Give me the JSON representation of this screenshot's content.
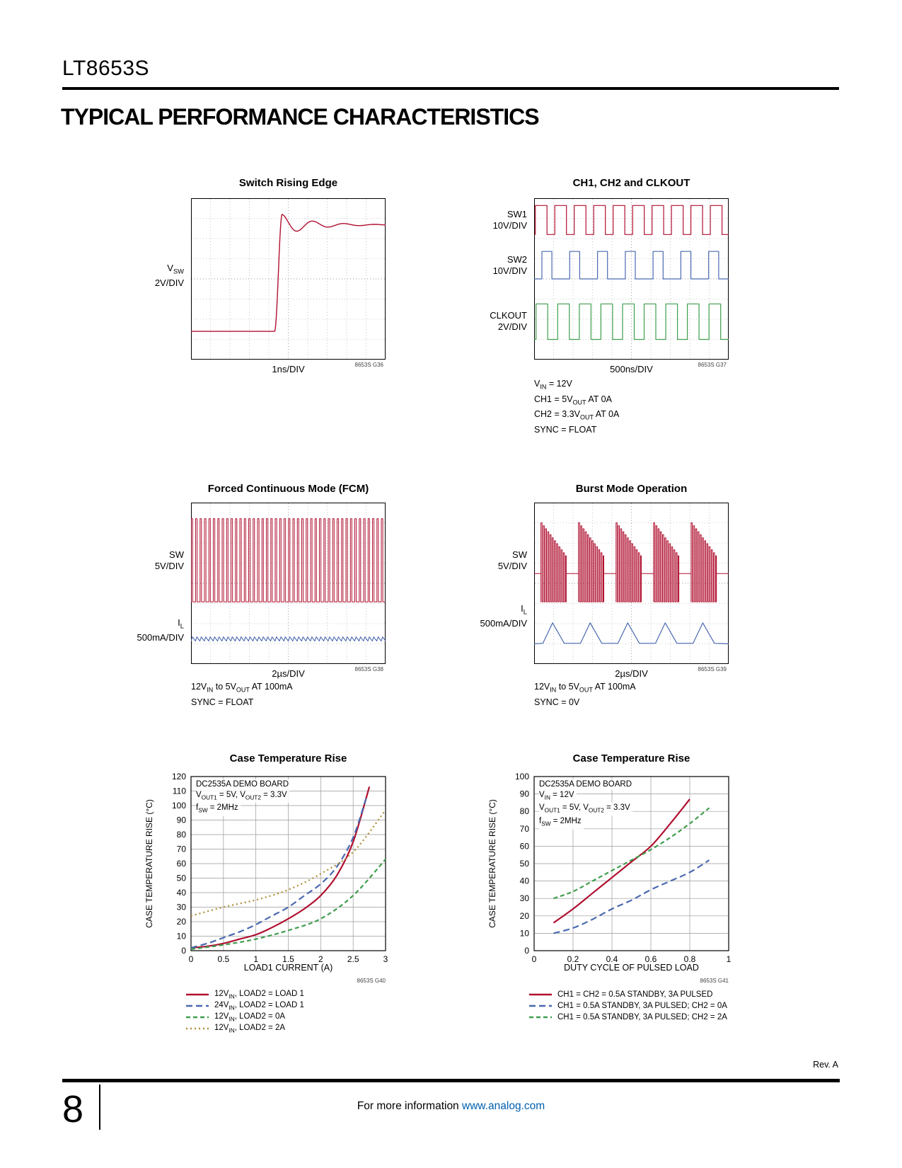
{
  "page": {
    "part_number": "LT8653S",
    "section_title": "TYPICAL PERFORMANCE CHARACTERISTICS",
    "rev": "Rev. A",
    "page_number": "8",
    "footer_pre": "For more information ",
    "footer_link": "www.analog.com",
    "colors": {
      "red": "#b01030",
      "blue": "#4a69b0",
      "green": "#3f9e4d",
      "olive": "#ad8d33",
      "link": "#0060af",
      "grid": "#999999"
    }
  },
  "scopes": {
    "g36": {
      "title": "Switch Rising Edge",
      "labels": [
        [
          "V_{SW}",
          "2V/DIV"
        ]
      ],
      "xlabel": "1ns/DIV",
      "code": "8653S G36",
      "notes": []
    },
    "g37": {
      "title": "CH1, CH2 and CLKOUT",
      "labels": [
        [
          "SW1",
          "10V/DIV"
        ],
        [
          "SW2",
          "10V/DIV"
        ],
        [
          "CLKOUT",
          "2V/DIV"
        ]
      ],
      "xlabel": "500ns/DIV",
      "code": "8653S G37",
      "notes": [
        "V_{IN} = 12V",
        "CH1 = 5V_{OUT} AT 0A",
        "CH2 = 3.3V_{OUT} AT 0A",
        "SYNC = FLOAT"
      ]
    },
    "g38": {
      "title": "Forced Continuous Mode (FCM)",
      "labels": [
        [
          "SW",
          "5V/DIV"
        ],
        [
          "I_{L}",
          "500mA/DIV"
        ]
      ],
      "xlabel": "2µs/DIV",
      "code": "8653S G38",
      "notes": [
        "12V_{IN} to 5V_{OUT} AT 100mA",
        "SYNC = FLOAT"
      ]
    },
    "g39": {
      "title": "Burst Mode Operation",
      "labels": [
        [
          "SW",
          "5V/DIV"
        ],
        [
          "I_{L}",
          "500mA/DIV"
        ]
      ],
      "xlabel": "2µs/DIV",
      "code": "8653S G39",
      "notes": [
        "12V_{IN} to 5V_{OUT} AT 100mA",
        "SYNC = 0V"
      ]
    }
  },
  "chart_data": [
    {
      "id": "g40",
      "type": "line",
      "title": "Case Temperature Rise",
      "xlabel": "LOAD1 CURRENT (A)",
      "ylabel": "CASE TEMPERATURE RISE (°C)",
      "code": "8653S G40",
      "xlim": [
        0,
        3
      ],
      "ylim": [
        0,
        120
      ],
      "xticks": [
        0,
        0.5,
        1,
        1.5,
        2,
        2.5,
        3
      ],
      "xtick_labels": [
        "0",
        "0.5",
        "1",
        "1.5",
        "2",
        "2.5",
        "3"
      ],
      "yticks": [
        0,
        10,
        20,
        30,
        40,
        50,
        60,
        70,
        80,
        90,
        100,
        110,
        120
      ],
      "grid": true,
      "legend_position": "below",
      "annotation": [
        "DC2535A DEMO BOARD",
        "V_{OUT1} = 5V, V_{OUT2} = 3.3V",
        "f_{SW} = 2MHz"
      ],
      "series": [
        {
          "name": "12V_{IN}, LOAD2 = LOAD 1",
          "color": "red",
          "dash": "solid",
          "x": [
            0,
            0.25,
            0.5,
            0.75,
            1,
            1.25,
            1.5,
            1.75,
            2,
            2.25,
            2.5,
            2.75
          ],
          "y": [
            2,
            3,
            5,
            8,
            11,
            16,
            22,
            29,
            38,
            52,
            75,
            113
          ]
        },
        {
          "name": "24V_{IN}, LOAD2 = LOAD 1",
          "color": "blue",
          "dash": "dash",
          "x": [
            0,
            0.25,
            0.5,
            0.75,
            1,
            1.25,
            1.5,
            1.75,
            2,
            2.25,
            2.5,
            2.7
          ],
          "y": [
            2,
            5,
            9,
            13,
            18,
            24,
            30,
            38,
            46,
            58,
            78,
            105
          ]
        },
        {
          "name": "12V_{IN}, LOAD2 = 0A",
          "color": "green",
          "dash": "dash2",
          "x": [
            0,
            0.5,
            1,
            1.5,
            2,
            2.5,
            3
          ],
          "y": [
            1,
            4,
            8,
            14,
            22,
            38,
            63
          ]
        },
        {
          "name": "12V_{IN}, LOAD2 = 2A",
          "color": "olive",
          "dash": "dot",
          "x": [
            0,
            0.5,
            1,
            1.5,
            2,
            2.5,
            3
          ],
          "y": [
            24,
            30,
            35,
            42,
            53,
            68,
            97
          ]
        }
      ]
    },
    {
      "id": "g41",
      "type": "line",
      "title": "Case Temperature Rise",
      "xlabel": "DUTY CYCLE OF PULSED LOAD",
      "ylabel": "CASE TEMPERATURE RISE (°C)",
      "code": "8653S G41",
      "xlim": [
        0,
        1
      ],
      "ylim": [
        0,
        100
      ],
      "xticks": [
        0,
        0.2,
        0.4,
        0.6,
        0.8,
        1
      ],
      "xtick_labels": [
        "0",
        "0.2",
        "0.4",
        "0.6",
        "0.8",
        "1"
      ],
      "yticks": [
        0,
        10,
        20,
        30,
        40,
        50,
        60,
        70,
        80,
        90,
        100
      ],
      "grid": true,
      "legend_position": "below",
      "annotation": [
        "DC2535A DEMO BOARD",
        "V_{IN} = 12V",
        "V_{OUT1} = 5V, V_{OUT2} = 3.3V",
        "f_{SW} = 2MHz"
      ],
      "series": [
        {
          "name": "CH1 = CH2 = 0.5A STANDBY, 3A PULSED",
          "color": "red",
          "dash": "solid",
          "x": [
            0.1,
            0.2,
            0.3,
            0.4,
            0.5,
            0.6,
            0.7,
            0.8
          ],
          "y": [
            16,
            24,
            33,
            42,
            51,
            60,
            73,
            87
          ]
        },
        {
          "name": "CH1 = 0.5A STANDBY, 3A PULSED; CH2 = 0A",
          "color": "blue",
          "dash": "dash",
          "x": [
            0.1,
            0.2,
            0.3,
            0.4,
            0.5,
            0.6,
            0.7,
            0.8,
            0.9
          ],
          "y": [
            10,
            13,
            18,
            24,
            29,
            35,
            40,
            45,
            52
          ]
        },
        {
          "name": "CH1 = 0.5A STANDBY, 3A PULSED; CH2 = 2A",
          "color": "green",
          "dash": "dash2",
          "x": [
            0.1,
            0.2,
            0.3,
            0.4,
            0.5,
            0.6,
            0.7,
            0.8,
            0.9
          ],
          "y": [
            30,
            34,
            40,
            46,
            52,
            58,
            65,
            73,
            82
          ]
        }
      ]
    }
  ]
}
